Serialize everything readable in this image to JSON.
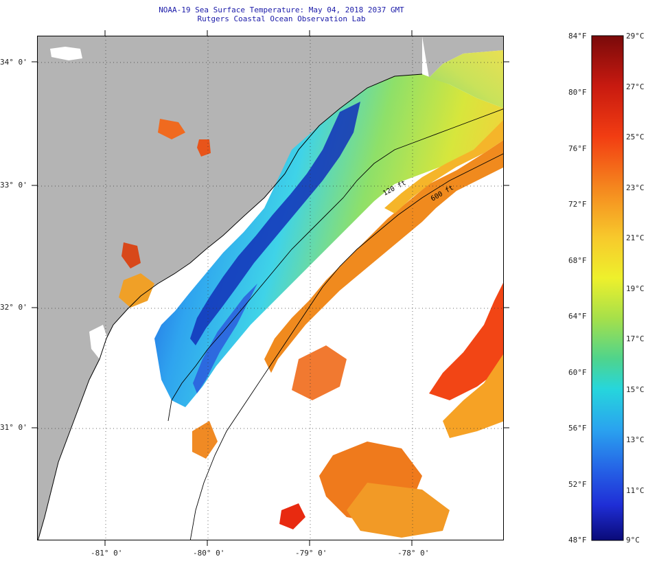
{
  "title": {
    "line1": "NOAA-19 Sea Surface Temperature:  May 04, 2018 2037 GMT",
    "line2": "Rutgers Coastal Ocean Observation Lab"
  },
  "map": {
    "lat_labels": [
      "34° 0'",
      "33° 0'",
      "32° 0'",
      "31° 0'"
    ],
    "lon_labels": [
      "-81° 0'",
      "-80° 0'",
      "-79° 0'",
      "-78° 0'"
    ],
    "isobaths": [
      {
        "label": "120 ft"
      },
      {
        "label": "600 ft"
      }
    ],
    "colors": {
      "land": "#b4b4b4",
      "no_data": "#ffffff"
    }
  },
  "colorbar": {
    "fahrenheit_labels": [
      "84°F",
      "80°F",
      "76°F",
      "72°F",
      "68°F",
      "64°F",
      "60°F",
      "56°F",
      "52°F",
      "48°F"
    ],
    "celsius_labels": [
      "29°C",
      "27°C",
      "25°C",
      "23°C",
      "21°C",
      "19°C",
      "17°C",
      "15°C",
      "13°C",
      "11°C",
      "9°C"
    ],
    "range_c": [
      9,
      29
    ],
    "range_f": [
      48,
      84
    ]
  }
}
